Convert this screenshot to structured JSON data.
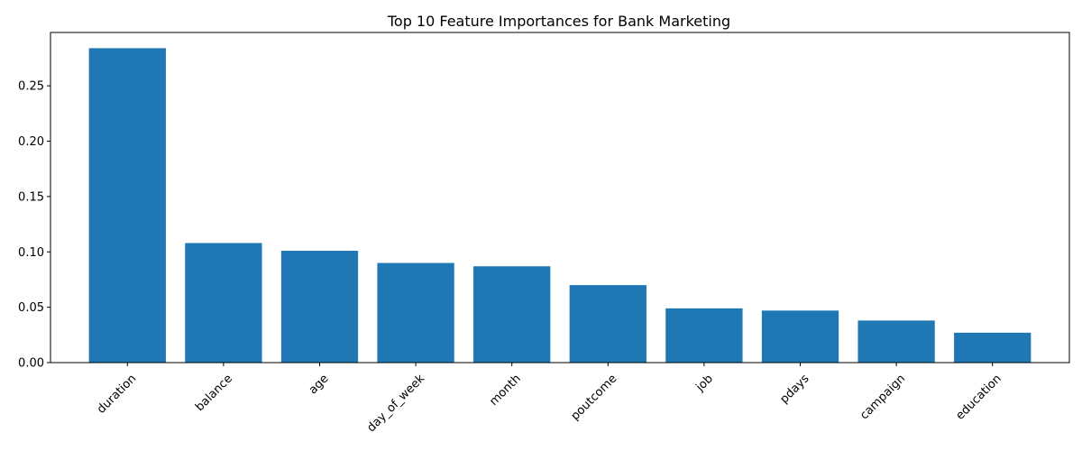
{
  "chart_data": {
    "type": "bar",
    "title": "Top 10 Feature Importances for Bank Marketing",
    "xlabel": "",
    "ylabel": "",
    "categories": [
      "duration",
      "balance",
      "age",
      "day_of_week",
      "month",
      "poutcome",
      "job",
      "pdays",
      "campaign",
      "education"
    ],
    "values": [
      0.284,
      0.108,
      0.101,
      0.09,
      0.087,
      0.07,
      0.049,
      0.047,
      0.038,
      0.027
    ],
    "ylim": [
      0,
      0.2982
    ],
    "yticks": [
      0.0,
      0.05,
      0.1,
      0.15,
      0.2,
      0.25
    ],
    "ytick_labels": [
      "0.00",
      "0.05",
      "0.10",
      "0.15",
      "0.20",
      "0.25"
    ],
    "bar_color": "#1f77b4",
    "grid": false,
    "legend": "none",
    "xtick_rotation_deg": 45
  }
}
